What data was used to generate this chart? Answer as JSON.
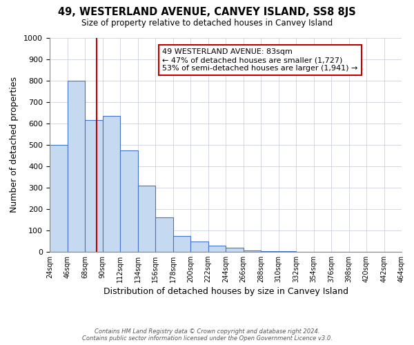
{
  "title": "49, WESTERLAND AVENUE, CANVEY ISLAND, SS8 8JS",
  "subtitle": "Size of property relative to detached houses in Canvey Island",
  "xlabel": "Distribution of detached houses by size in Canvey Island",
  "ylabel": "Number of detached properties",
  "bar_values": [
    500,
    800,
    615,
    635,
    475,
    310,
    160,
    75,
    47,
    28,
    20,
    8,
    3,
    2,
    1,
    1,
    0,
    1,
    0,
    0
  ],
  "bin_labels": [
    "24sqm",
    "46sqm",
    "68sqm",
    "90sqm",
    "112sqm",
    "134sqm",
    "156sqm",
    "178sqm",
    "200sqm",
    "222sqm",
    "244sqm",
    "266sqm",
    "288sqm",
    "310sqm",
    "332sqm",
    "354sqm",
    "376sqm",
    "398sqm",
    "420sqm",
    "442sqm",
    "464sqm"
  ],
  "bar_color": "#c5d9f1",
  "bar_edge_color": "#4472c4",
  "vline_x_idx": 2,
  "vline_color": "#c00000",
  "ylim": [
    0,
    1000
  ],
  "yticks": [
    0,
    100,
    200,
    300,
    400,
    500,
    600,
    700,
    800,
    900,
    1000
  ],
  "annotation_title": "49 WESTERLAND AVENUE: 83sqm",
  "annotation_line1": "← 47% of detached houses are smaller (1,727)",
  "annotation_line2": "53% of semi-detached houses are larger (1,941) →",
  "annotation_box_color": "#c00000",
  "footer_line1": "Contains HM Land Registry data © Crown copyright and database right 2024.",
  "footer_line2": "Contains public sector information licensed under the Open Government Licence v3.0.",
  "background_color": "#ffffff",
  "grid_color": "#c0c8d8"
}
